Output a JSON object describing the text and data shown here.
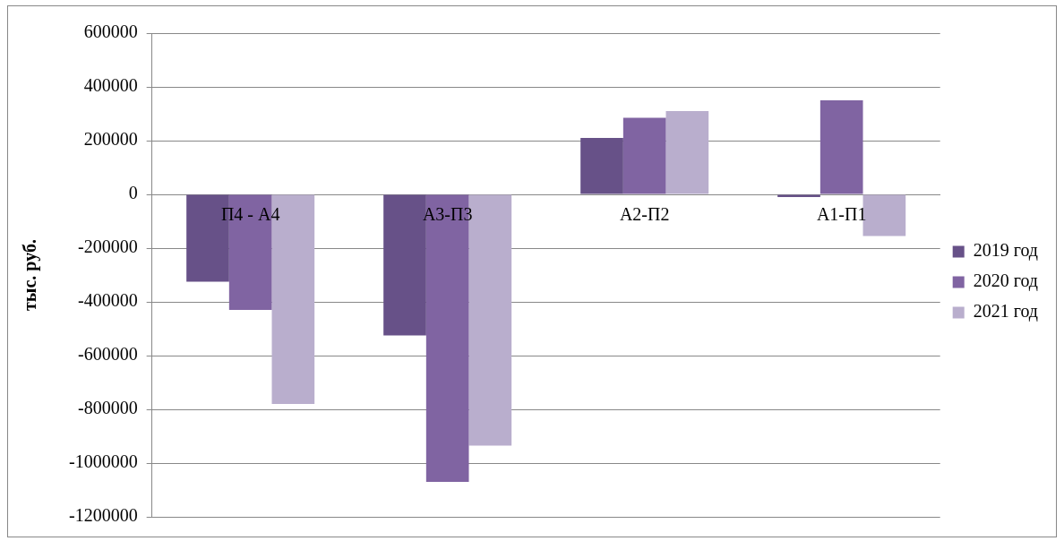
{
  "chart_data": {
    "type": "bar",
    "ylabel": "тыс. руб.",
    "categories": [
      "П4 - А4",
      "А3-П3",
      "А2-П2",
      "А1-П1"
    ],
    "series": [
      {
        "name": "2019 год",
        "color": "#675188",
        "values": [
          -325000,
          -525000,
          210000,
          -10000
        ]
      },
      {
        "name": "2020 год",
        "color": "#8064a2",
        "values": [
          -430000,
          -1070000,
          285000,
          350000
        ]
      },
      {
        "name": "2021 год",
        "color": "#b9aecd",
        "values": [
          -780000,
          -935000,
          310000,
          -155000
        ]
      }
    ],
    "ylim": [
      -1200000,
      600000
    ],
    "yticks": [
      -1200000,
      -1000000,
      -800000,
      -600000,
      -400000,
      -200000,
      0,
      200000,
      400000,
      600000
    ],
    "grid": "y",
    "legend": "right"
  }
}
